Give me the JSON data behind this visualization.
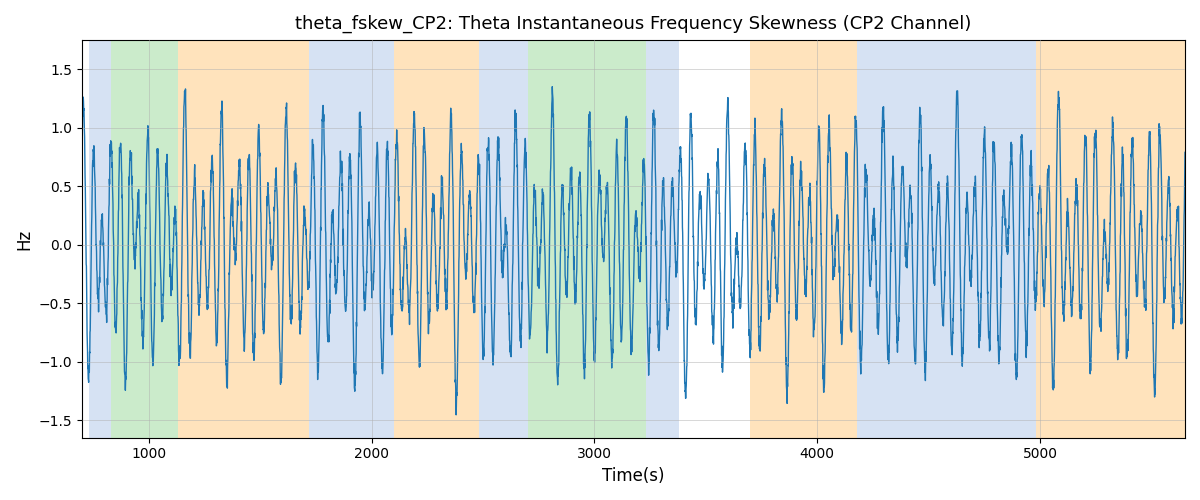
{
  "title": "theta_fskew_CP2: Theta Instantaneous Frequency Skewness (CP2 Channel)",
  "xlabel": "Time(s)",
  "ylabel": "Hz",
  "ylim": [
    -1.65,
    1.75
  ],
  "xlim": [
    700,
    5650
  ],
  "yticks": [
    -1.5,
    -1.0,
    -0.5,
    0.0,
    0.5,
    1.0,
    1.5
  ],
  "xticks": [
    1000,
    2000,
    3000,
    4000,
    5000
  ],
  "line_color": "#1f77b4",
  "line_width": 1.0,
  "background_color": "#ffffff",
  "grid_color": "#b0b0b0",
  "colored_bands": [
    {
      "xmin": 730,
      "xmax": 830,
      "color": "#aec6e8",
      "alpha": 0.5
    },
    {
      "xmin": 830,
      "xmax": 1130,
      "color": "#98d898",
      "alpha": 0.5
    },
    {
      "xmin": 1130,
      "xmax": 1720,
      "color": "#ffc87a",
      "alpha": 0.5
    },
    {
      "xmin": 1720,
      "xmax": 2100,
      "color": "#aec6e8",
      "alpha": 0.5
    },
    {
      "xmin": 2100,
      "xmax": 2480,
      "color": "#ffc87a",
      "alpha": 0.5
    },
    {
      "xmin": 2480,
      "xmax": 2700,
      "color": "#aec6e8",
      "alpha": 0.5
    },
    {
      "xmin": 2700,
      "xmax": 3230,
      "color": "#98d898",
      "alpha": 0.5
    },
    {
      "xmin": 3230,
      "xmax": 3380,
      "color": "#aec6e8",
      "alpha": 0.5
    },
    {
      "xmin": 3700,
      "xmax": 4180,
      "color": "#ffc87a",
      "alpha": 0.5
    },
    {
      "xmin": 4180,
      "xmax": 4980,
      "color": "#aec6e8",
      "alpha": 0.5
    },
    {
      "xmin": 4980,
      "xmax": 5650,
      "color": "#ffc87a",
      "alpha": 0.5
    }
  ],
  "seed": 42,
  "n_points": 4900,
  "x_start": 700,
  "x_end": 5650
}
